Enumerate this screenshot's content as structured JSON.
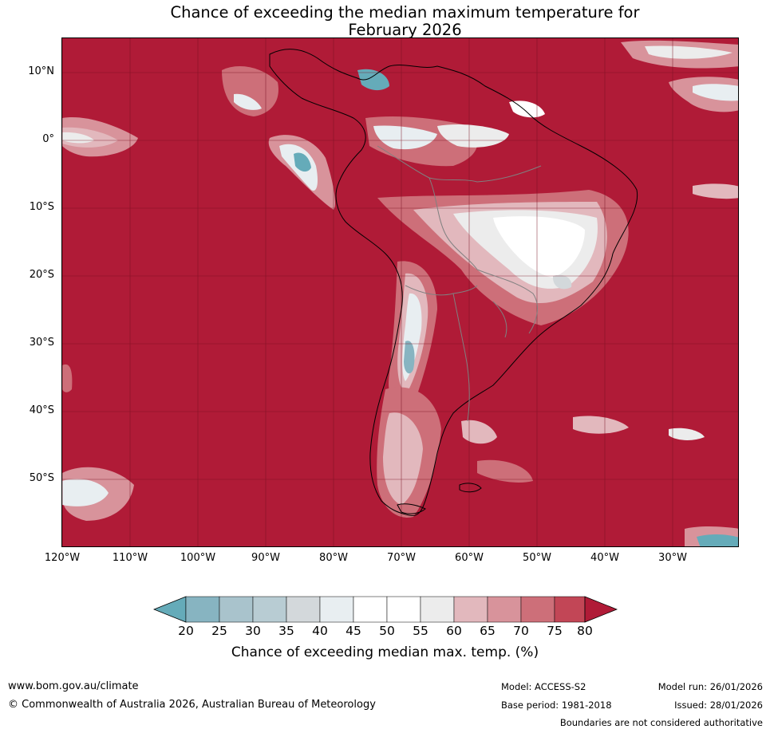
{
  "title_line1": "Chance of exceeding the median maximum temperature for",
  "title_line2": "February 2026",
  "map": {
    "lat_labels": [
      "10°N",
      "0°",
      "10°S",
      "20°S",
      "30°S",
      "40°S",
      "50°S"
    ],
    "lon_labels": [
      "120°W",
      "110°W",
      "100°W",
      "90°W",
      "80°W",
      "70°W",
      "60°W",
      "50°W",
      "40°W",
      "30°W"
    ],
    "colors": {
      "c80": "#b01b37",
      "c75": "#c24656",
      "c70": "#cd6f79",
      "c65": "#d8939b",
      "c60": "#e2b8bd",
      "c55": "#ececec",
      "c45": "#ffffff",
      "c40": "#e8eef1",
      "c35": "#d3d8db",
      "c30": "#a9c3cc",
      "c25": "#87b4c1",
      "c20": "#65abb9",
      "coast": "#000000",
      "border": "#808080"
    }
  },
  "colorbar": {
    "ticks": [
      "20",
      "25",
      "30",
      "35",
      "40",
      "45",
      "50",
      "55",
      "60",
      "65",
      "70",
      "75",
      "80"
    ],
    "label": "Chance of exceeding median max. temp. (%)",
    "colors": [
      "#65abb9",
      "#87b4c1",
      "#a9c3cc",
      "#d3d8db",
      "#e8eef1",
      "#ffffff",
      "#ffffff",
      "#ececec",
      "#e2b8bd",
      "#d8939b",
      "#cd6f79",
      "#c24656",
      "#b01b37"
    ]
  },
  "footer": {
    "website": "www.bom.gov.au/climate",
    "copyright": "© Commonwealth of Australia 2026, Australian Bureau of Meteorology",
    "model": "Model: ACCESS-S2",
    "base_period": "Base period: 1981-2018",
    "model_run": "Model run: 26/01/2026",
    "issued": "Issued: 28/01/2026",
    "disclaimer": "Boundaries are not considered authoritative"
  }
}
